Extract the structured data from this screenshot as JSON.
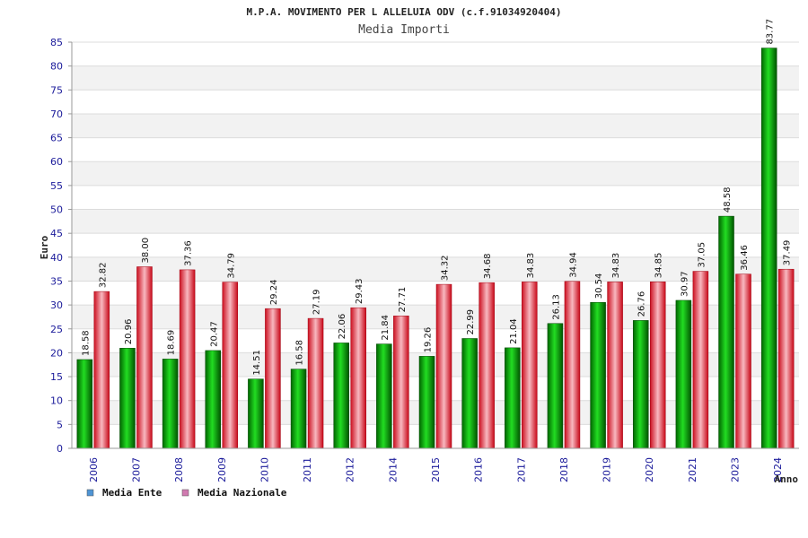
{
  "chart_data": {
    "type": "bar",
    "title": "M.P.A. MOVIMENTO PER L ALLELUIA ODV (c.f.91034920404)",
    "subtitle": "Media Importi",
    "xlabel": "Anno",
    "ylabel": "Euro",
    "ylim": [
      0,
      85
    ],
    "yticks": [
      0,
      5,
      10,
      15,
      20,
      25,
      30,
      35,
      40,
      45,
      50,
      55,
      60,
      65,
      70,
      75,
      80,
      85
    ],
    "grid": true,
    "legend_position": "bottom-left",
    "categories": [
      "2006",
      "2007",
      "2008",
      "2009",
      "2010",
      "2011",
      "2012",
      "2014",
      "2015",
      "2016",
      "2017",
      "2018",
      "2019",
      "2020",
      "2021",
      "2023",
      "2024"
    ],
    "series": [
      {
        "name": "Media Ente",
        "color": "#00aa00",
        "legend_color": "#4f94d4",
        "values": [
          18.58,
          20.96,
          18.69,
          20.47,
          14.51,
          16.58,
          22.06,
          21.84,
          19.26,
          22.99,
          21.04,
          26.13,
          30.54,
          26.76,
          30.97,
          48.58,
          83.77
        ],
        "labels": [
          "18.58",
          "20.96",
          "18.69",
          "20.47",
          "14.51",
          "16.58",
          "22.06",
          "21.84",
          "19.26",
          "22.99",
          "21.04",
          "26.13",
          "30.54",
          "26.76",
          "30.97",
          "48.58",
          "83.77"
        ]
      },
      {
        "name": "Media Nazionale",
        "color": "#e8202a",
        "legend_color": "#d07ab0",
        "values": [
          32.82,
          38.0,
          37.36,
          34.79,
          29.24,
          27.19,
          29.43,
          27.71,
          34.32,
          34.68,
          34.83,
          34.94,
          34.83,
          34.85,
          37.05,
          36.46,
          37.49
        ],
        "labels": [
          "32.82",
          "38.00",
          "37.36",
          "34.79",
          "29.24",
          "27.19",
          "29.43",
          "27.71",
          "34.32",
          "34.68",
          "34.83",
          "34.94",
          "34.83",
          "34.85",
          "37.05",
          "36.46",
          "37.49"
        ]
      }
    ]
  }
}
